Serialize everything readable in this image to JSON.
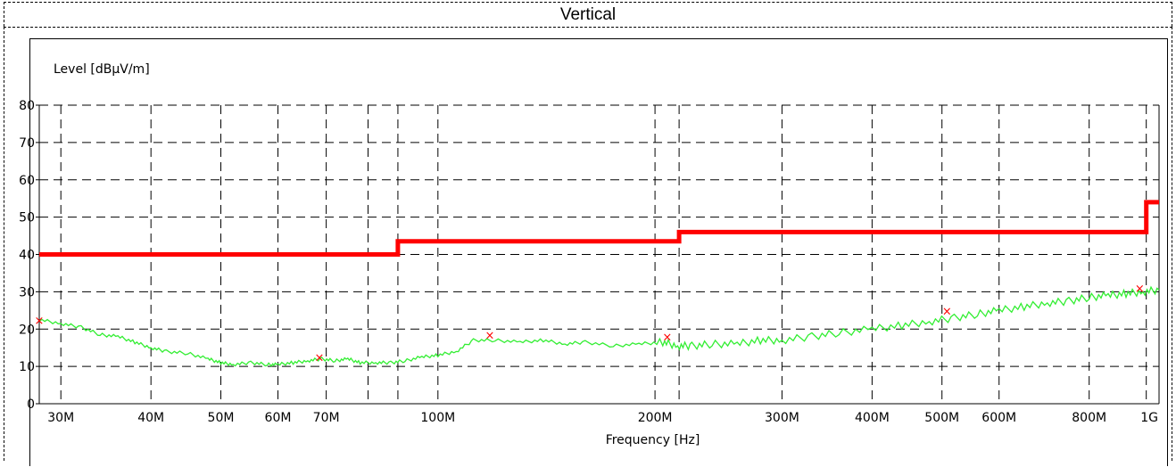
{
  "title": "Vertical",
  "chart_data": {
    "type": "line",
    "title": "Vertical",
    "xlabel": "Frequency [Hz]",
    "ylabel": "Level [dBµV/m]",
    "x_scale": "log",
    "xlim": [
      28000000,
      1000000000
    ],
    "ylim": [
      0,
      80
    ],
    "grid": true,
    "x_ticks": [
      {
        "value": 30000000,
        "label": "30M"
      },
      {
        "value": 40000000,
        "label": "40M"
      },
      {
        "value": 50000000,
        "label": "50M"
      },
      {
        "value": 60000000,
        "label": "60M"
      },
      {
        "value": 70000000,
        "label": "70M"
      },
      {
        "value": 100000000,
        "label": "100M"
      },
      {
        "value": 200000000,
        "label": "200M"
      },
      {
        "value": 300000000,
        "label": "300M"
      },
      {
        "value": 400000000,
        "label": "400M"
      },
      {
        "value": 500000000,
        "label": "500M"
      },
      {
        "value": 600000000,
        "label": "600M"
      },
      {
        "value": 800000000,
        "label": "800M"
      },
      {
        "value": 1000000000,
        "label": "1G"
      }
    ],
    "extra_vgrid": [
      80000000,
      88000000,
      216000000,
      960000000
    ],
    "y_ticks": [
      0,
      10,
      20,
      30,
      40,
      50,
      60,
      70,
      80
    ],
    "series": [
      {
        "kind": "limit",
        "color": "#ff0000",
        "x": [
          28000000,
          88000000,
          88000000,
          216000000,
          216000000,
          960000000,
          960000000,
          1000000000
        ],
        "y": [
          40,
          40,
          43.5,
          43.5,
          46,
          46,
          54,
          54
        ]
      },
      {
        "kind": "measurement",
        "color": "#33ee33",
        "x": [
          28000000,
          30000000,
          32000000,
          34000000,
          36000000,
          38000000,
          40000000,
          42000000,
          45000000,
          48000000,
          50000000,
          52000000,
          55000000,
          58000000,
          60000000,
          63000000,
          66000000,
          69000000,
          72000000,
          75000000,
          78000000,
          82000000,
          86000000,
          90000000,
          95000000,
          100000000,
          106000000,
          112000000,
          120000000,
          130000000,
          140000000,
          150000000,
          160000000,
          175000000,
          190000000,
          205000000,
          215000000,
          225000000,
          240000000,
          260000000,
          280000000,
          300000000,
          330000000,
          360000000,
          400000000,
          440000000,
          480000000,
          520000000,
          560000000,
          600000000,
          650000000,
          700000000,
          750000000,
          800000000,
          850000000,
          900000000,
          950000000,
          1000000000
        ],
        "y": [
          22.5,
          21.5,
          20.5,
          18.5,
          18,
          16.5,
          15,
          14,
          13.5,
          12,
          11,
          10.5,
          11,
          10.5,
          10.5,
          11,
          11.5,
          12,
          11.5,
          12,
          11,
          11,
          11,
          11.5,
          12.5,
          13,
          14,
          17,
          17,
          16.5,
          17,
          16,
          16.5,
          15.5,
          16,
          16.5,
          15.5,
          15.5,
          16,
          16,
          17,
          17,
          18,
          19,
          20,
          21,
          22,
          23,
          24,
          25,
          26,
          27,
          27.5,
          28.5,
          29,
          29.5,
          30,
          30.5
        ]
      }
    ],
    "markers": [
      {
        "x": 28000000,
        "y": 22.5
      },
      {
        "x": 68500000,
        "y": 12.5
      },
      {
        "x": 118000000,
        "y": 18.5
      },
      {
        "x": 208000000,
        "y": 18
      },
      {
        "x": 508000000,
        "y": 25
      },
      {
        "x": 940000000,
        "y": 31
      }
    ],
    "colors": {
      "limit": "#ff0000",
      "measurement": "#33ee33",
      "marker": "#ff0000",
      "grid": "#000000"
    }
  }
}
